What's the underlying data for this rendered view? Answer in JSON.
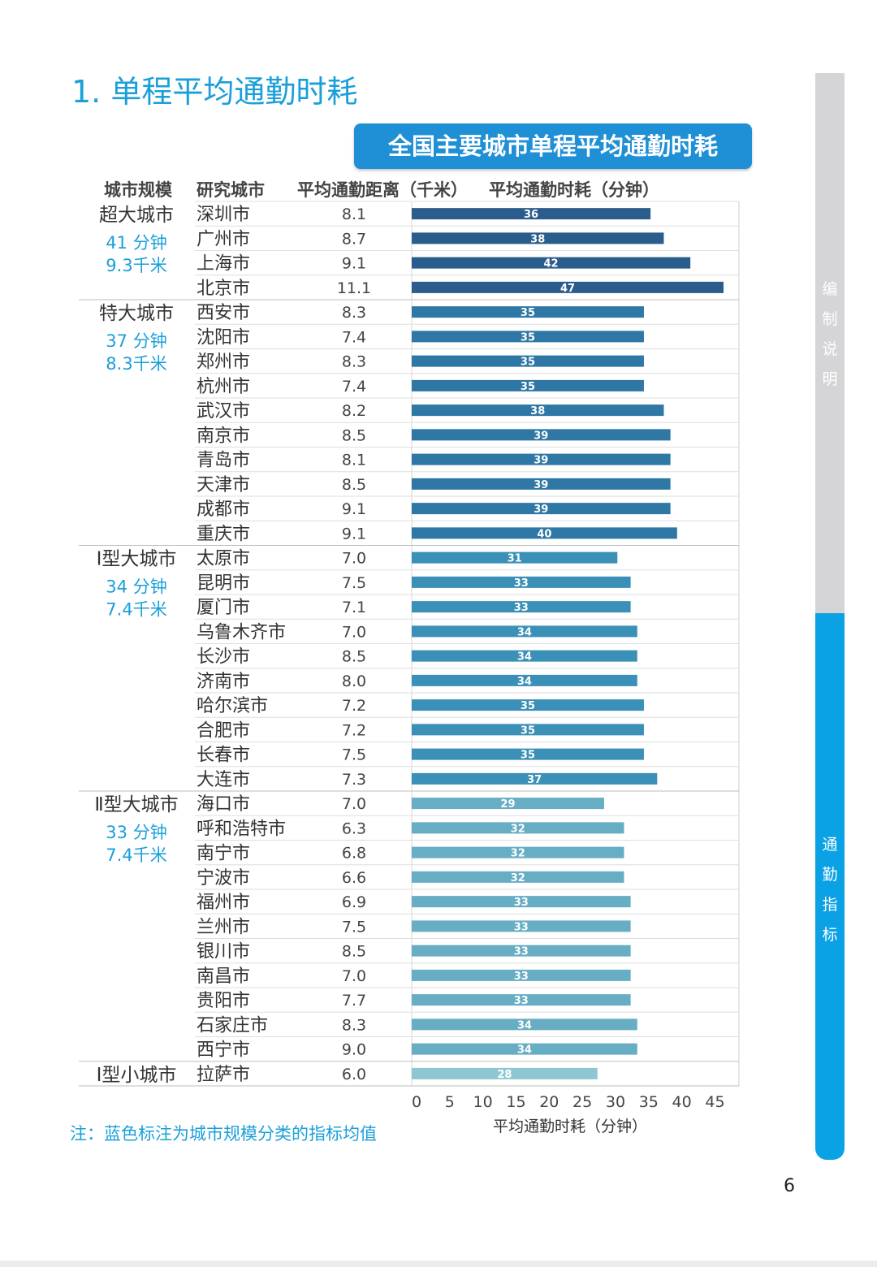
{
  "section_title": "1. 单程平均通勤时耗",
  "chart_title": "全国主要城市单程平均通勤时耗",
  "headers": {
    "scale": "城市规模",
    "city": "研究城市",
    "distance": "平均通勤距离（千米）",
    "time": "平均通勤时耗（分钟）"
  },
  "side_tabs": [
    {
      "label": "编制说明",
      "color": "#d5d5d8"
    },
    {
      "label": "通勤指标",
      "color": "#0aa2e5"
    }
  ],
  "note": "注：蓝色标注为城市规模分类的指标均值",
  "page_number": "6",
  "chart_data": {
    "type": "bar",
    "orientation": "horizontal",
    "xlabel": "平均通勤时耗（分钟）",
    "xlim": [
      0,
      48
    ],
    "xticks": [
      0,
      5,
      10,
      15,
      20,
      25,
      30,
      35,
      40,
      45
    ],
    "groups": [
      {
        "name": "超大城市",
        "avg_time": "41 分钟",
        "avg_distance": "9.3千米",
        "color": "#2b5d8c",
        "rows": [
          {
            "city": "深圳市",
            "distance": "8.1",
            "time": 36
          },
          {
            "city": "广州市",
            "distance": "8.7",
            "time": 38
          },
          {
            "city": "上海市",
            "distance": "9.1",
            "time": 42
          },
          {
            "city": "北京市",
            "distance": "11.1",
            "time": 47
          }
        ]
      },
      {
        "name": "特大城市",
        "avg_time": "37 分钟",
        "avg_distance": "8.3千米",
        "color": "#2f77a4",
        "rows": [
          {
            "city": "西安市",
            "distance": "8.3",
            "time": 35
          },
          {
            "city": "沈阳市",
            "distance": "7.4",
            "time": 35
          },
          {
            "city": "郑州市",
            "distance": "8.3",
            "time": 35
          },
          {
            "city": "杭州市",
            "distance": "7.4",
            "time": 35
          },
          {
            "city": "武汉市",
            "distance": "8.2",
            "time": 38
          },
          {
            "city": "南京市",
            "distance": "8.5",
            "time": 39
          },
          {
            "city": "青岛市",
            "distance": "8.1",
            "time": 39
          },
          {
            "city": "天津市",
            "distance": "8.5",
            "time": 39
          },
          {
            "city": "成都市",
            "distance": "9.1",
            "time": 39
          },
          {
            "city": "重庆市",
            "distance": "9.1",
            "time": 40
          }
        ]
      },
      {
        "name": "Ⅰ型大城市",
        "avg_time": "34 分钟",
        "avg_distance": "7.4千米",
        "color": "#3a90b6",
        "rows": [
          {
            "city": "太原市",
            "distance": "7.0",
            "time": 31
          },
          {
            "city": "昆明市",
            "distance": "7.5",
            "time": 33
          },
          {
            "city": "厦门市",
            "distance": "7.1",
            "time": 33
          },
          {
            "city": "乌鲁木齐市",
            "distance": "7.0",
            "time": 34
          },
          {
            "city": "长沙市",
            "distance": "8.5",
            "time": 34
          },
          {
            "city": "济南市",
            "distance": "8.0",
            "time": 34
          },
          {
            "city": "哈尔滨市",
            "distance": "7.2",
            "time": 35
          },
          {
            "city": "合肥市",
            "distance": "7.2",
            "time": 35
          },
          {
            "city": "长春市",
            "distance": "7.5",
            "time": 35
          },
          {
            "city": "大连市",
            "distance": "7.3",
            "time": 37
          }
        ]
      },
      {
        "name": "Ⅱ型大城市",
        "avg_time": "33 分钟",
        "avg_distance": "7.4千米",
        "color": "#67adc3",
        "rows": [
          {
            "city": "海口市",
            "distance": "7.0",
            "time": 29
          },
          {
            "city": "呼和浩特市",
            "distance": "6.3",
            "time": 32
          },
          {
            "city": "南宁市",
            "distance": "6.8",
            "time": 32
          },
          {
            "city": "宁波市",
            "distance": "6.6",
            "time": 32
          },
          {
            "city": "福州市",
            "distance": "6.9",
            "time": 33
          },
          {
            "city": "兰州市",
            "distance": "7.5",
            "time": 33
          },
          {
            "city": "银川市",
            "distance": "8.5",
            "time": 33
          },
          {
            "city": "南昌市",
            "distance": "7.0",
            "time": 33
          },
          {
            "city": "贵阳市",
            "distance": "7.7",
            "time": 33
          },
          {
            "city": "石家庄市",
            "distance": "8.3",
            "time": 34
          },
          {
            "city": "西宁市",
            "distance": "9.0",
            "time": 34
          }
        ]
      },
      {
        "name": "Ⅰ型小城市",
        "avg_time": "",
        "avg_distance": "",
        "color": "#8ec7d2",
        "rows": [
          {
            "city": "拉萨市",
            "distance": "6.0",
            "time": 28
          }
        ]
      }
    ]
  }
}
